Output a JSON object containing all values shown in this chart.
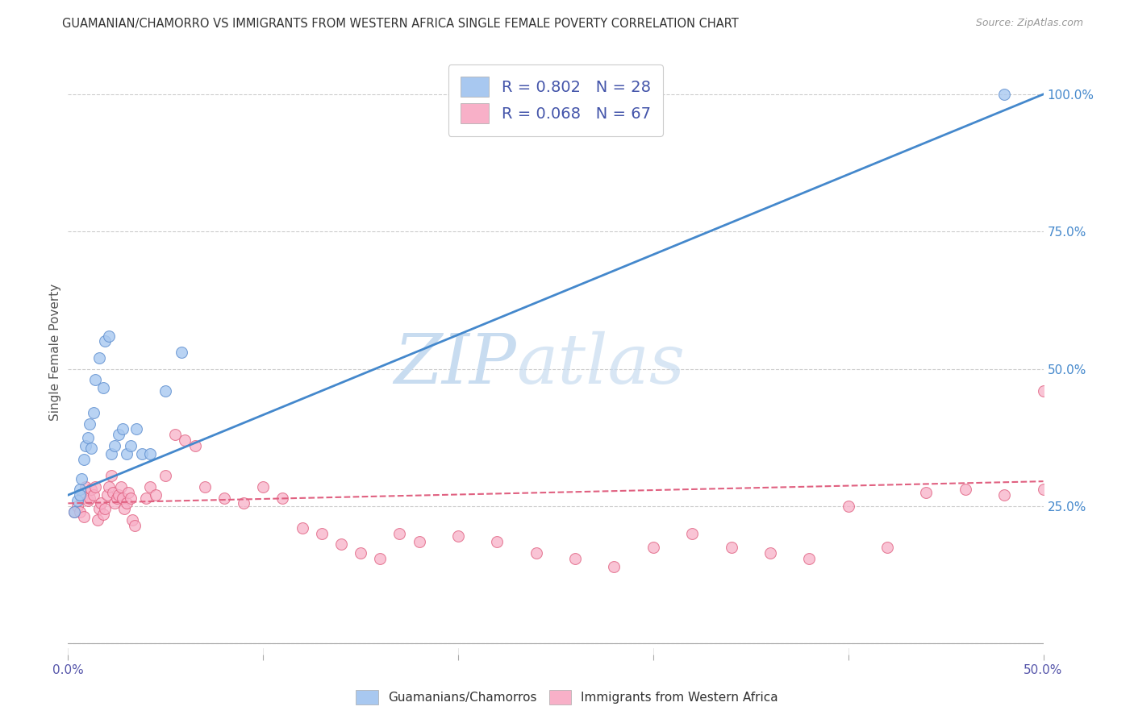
{
  "title": "GUAMANIAN/CHAMORRO VS IMMIGRANTS FROM WESTERN AFRICA SINGLE FEMALE POVERTY CORRELATION CHART",
  "source": "Source: ZipAtlas.com",
  "ylabel": "Single Female Poverty",
  "xlim": [
    0.0,
    0.5
  ],
  "ylim": [
    -0.02,
    1.08
  ],
  "xticks": [
    0.0,
    0.1,
    0.2,
    0.3,
    0.4,
    0.5
  ],
  "xticklabels": [
    "0.0%",
    "",
    "",
    "",
    "",
    "50.0%"
  ],
  "yticks_right": [
    0.0,
    0.25,
    0.5,
    0.75,
    1.0
  ],
  "ytick_right_labels": [
    "",
    "25.0%",
    "50.0%",
    "75.0%",
    "100.0%"
  ],
  "blue_color": "#A8C8F0",
  "blue_edge": "#6090D0",
  "pink_color": "#F8B0C8",
  "pink_edge": "#E06080",
  "blue_line_color": "#4488CC",
  "pink_line_color": "#E06080",
  "legend_blue_label": "R = 0.802   N = 28",
  "legend_pink_label": "R = 0.068   N = 67",
  "blue_scatter_x": [
    0.003,
    0.005,
    0.006,
    0.006,
    0.007,
    0.008,
    0.009,
    0.01,
    0.011,
    0.012,
    0.013,
    0.014,
    0.016,
    0.018,
    0.019,
    0.021,
    0.022,
    0.024,
    0.026,
    0.028,
    0.03,
    0.032,
    0.035,
    0.038,
    0.042,
    0.05,
    0.058,
    0.48
  ],
  "blue_scatter_y": [
    0.24,
    0.26,
    0.28,
    0.27,
    0.3,
    0.335,
    0.36,
    0.375,
    0.4,
    0.355,
    0.42,
    0.48,
    0.52,
    0.465,
    0.55,
    0.56,
    0.345,
    0.36,
    0.38,
    0.39,
    0.345,
    0.36,
    0.39,
    0.345,
    0.345,
    0.46,
    0.53,
    1.0
  ],
  "pink_scatter_x": [
    0.003,
    0.005,
    0.006,
    0.007,
    0.008,
    0.009,
    0.01,
    0.011,
    0.012,
    0.013,
    0.014,
    0.015,
    0.016,
    0.017,
    0.018,
    0.019,
    0.02,
    0.021,
    0.022,
    0.023,
    0.024,
    0.025,
    0.026,
    0.027,
    0.028,
    0.029,
    0.03,
    0.031,
    0.032,
    0.033,
    0.034,
    0.04,
    0.042,
    0.045,
    0.05,
    0.055,
    0.06,
    0.065,
    0.07,
    0.08,
    0.09,
    0.1,
    0.11,
    0.12,
    0.13,
    0.14,
    0.15,
    0.16,
    0.17,
    0.18,
    0.2,
    0.22,
    0.24,
    0.26,
    0.28,
    0.3,
    0.32,
    0.34,
    0.36,
    0.38,
    0.4,
    0.42,
    0.44,
    0.46,
    0.48,
    0.5,
    0.5
  ],
  "pink_scatter_y": [
    0.24,
    0.25,
    0.24,
    0.265,
    0.23,
    0.285,
    0.26,
    0.265,
    0.28,
    0.27,
    0.285,
    0.225,
    0.245,
    0.255,
    0.235,
    0.245,
    0.27,
    0.285,
    0.305,
    0.275,
    0.255,
    0.265,
    0.27,
    0.285,
    0.265,
    0.245,
    0.255,
    0.275,
    0.265,
    0.225,
    0.215,
    0.265,
    0.285,
    0.27,
    0.305,
    0.38,
    0.37,
    0.36,
    0.285,
    0.265,
    0.255,
    0.285,
    0.265,
    0.21,
    0.2,
    0.18,
    0.165,
    0.155,
    0.2,
    0.185,
    0.195,
    0.185,
    0.165,
    0.155,
    0.14,
    0.175,
    0.2,
    0.175,
    0.165,
    0.155,
    0.25,
    0.175,
    0.275,
    0.28,
    0.27,
    0.28,
    0.46
  ],
  "blue_line_x": [
    0.0,
    0.5
  ],
  "blue_line_y": [
    0.27,
    1.0
  ],
  "pink_line_x": [
    0.0,
    0.5
  ],
  "pink_line_y": [
    0.255,
    0.295
  ]
}
